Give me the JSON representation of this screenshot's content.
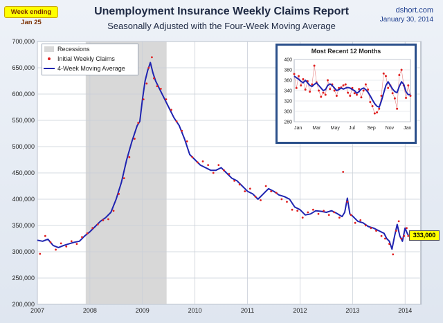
{
  "header": {
    "week_badge": "Week ending Jan 25",
    "title": "Unemployment Insurance Weekly Claims Report",
    "subtitle": "Seasonally Adjusted with the Four-Week Moving Average",
    "source": "dshort.com",
    "date": "January 30, 2014"
  },
  "legend": {
    "recessions": "Recessions",
    "claims": "Initial Weekly Claims",
    "average": "4-Week Moving Average"
  },
  "last_value_label": "333,000",
  "colors": {
    "recession": "#d8d8d8",
    "claims": "#e02020",
    "average": "#1f24b0",
    "highlight": "#ffff00"
  },
  "chart_data": [
    {
      "type": "line",
      "title": "Unemployment Insurance Weekly Claims Report",
      "subtitle": "Seasonally Adjusted with the Four-Week Moving Average",
      "ylim": [
        200000,
        700000
      ],
      "xlim": [
        2007.0,
        2014.3
      ],
      "y_ticks": [
        200000,
        250000,
        300000,
        350000,
        400000,
        450000,
        500000,
        550000,
        600000,
        650000,
        700000
      ],
      "y_tick_labels": [
        "200,000",
        "250,000",
        "300,000",
        "350,000",
        "400,000",
        "450,000",
        "500,000",
        "550,000",
        "600,000",
        "650,000",
        "700,000"
      ],
      "x_ticks": [
        2007,
        2008,
        2009,
        2010,
        2011,
        2012,
        2013,
        2014
      ],
      "x_tick_labels": [
        "2007",
        "2008",
        "2009",
        "2010",
        "2011",
        "2012",
        "2013",
        "2014"
      ],
      "grid": true,
      "recession": [
        2007.92,
        2009.46
      ],
      "series": [
        {
          "name": "4-Week Moving Average",
          "style": "line",
          "x": [
            2007.0,
            2007.1,
            2007.2,
            2007.3,
            2007.4,
            2007.5,
            2007.6,
            2007.7,
            2007.8,
            2007.9,
            2008.0,
            2008.1,
            2008.2,
            2008.3,
            2008.4,
            2008.5,
            2008.6,
            2008.7,
            2008.8,
            2008.9,
            2008.95,
            2009.0,
            2009.05,
            2009.1,
            2009.15,
            2009.2,
            2009.25,
            2009.3,
            2009.4,
            2009.5,
            2009.6,
            2009.7,
            2009.8,
            2009.9,
            2010.0,
            2010.1,
            2010.2,
            2010.3,
            2010.4,
            2010.5,
            2010.6,
            2010.7,
            2010.8,
            2010.9,
            2011.0,
            2011.1,
            2011.2,
            2011.3,
            2011.4,
            2011.5,
            2011.6,
            2011.7,
            2011.8,
            2011.9,
            2012.0,
            2012.1,
            2012.2,
            2012.3,
            2012.4,
            2012.5,
            2012.6,
            2012.7,
            2012.8,
            2012.85,
            2012.9,
            2012.95,
            2013.0,
            2013.1,
            2013.2,
            2013.3,
            2013.4,
            2013.5,
            2013.6,
            2013.65,
            2013.7,
            2013.75,
            2013.8,
            2013.85,
            2013.9,
            2013.95,
            2014.0,
            2014.05,
            2014.07
          ],
          "values": [
            322000,
            320000,
            324000,
            312000,
            308000,
            312000,
            315000,
            318000,
            320000,
            330000,
            338000,
            348000,
            358000,
            365000,
            375000,
            400000,
            432000,
            475000,
            510000,
            540000,
            548000,
            590000,
            625000,
            645000,
            660000,
            640000,
            625000,
            615000,
            595000,
            575000,
            555000,
            540000,
            515000,
            485000,
            475000,
            465000,
            460000,
            455000,
            455000,
            460000,
            450000,
            440000,
            435000,
            425000,
            415000,
            410000,
            400000,
            410000,
            420000,
            415000,
            408000,
            405000,
            400000,
            385000,
            380000,
            370000,
            372000,
            378000,
            377000,
            375000,
            378000,
            373000,
            367000,
            375000,
            402000,
            372000,
            368000,
            358000,
            355000,
            348000,
            345000,
            340000,
            335000,
            325000,
            320000,
            305000,
            330000,
            352000,
            330000,
            320000,
            345000,
            333000,
            333000
          ]
        },
        {
          "name": "Initial Weekly Claims",
          "style": "dots",
          "x": [
            2007.05,
            2007.15,
            2007.25,
            2007.35,
            2007.45,
            2007.55,
            2007.65,
            2007.75,
            2007.85,
            2007.95,
            2008.05,
            2008.15,
            2008.25,
            2008.35,
            2008.45,
            2008.55,
            2008.65,
            2008.75,
            2008.85,
            2008.92,
            2009.02,
            2009.08,
            2009.12,
            2009.18,
            2009.22,
            2009.28,
            2009.35,
            2009.45,
            2009.55,
            2009.65,
            2009.75,
            2009.85,
            2009.95,
            2010.05,
            2010.15,
            2010.25,
            2010.35,
            2010.45,
            2010.55,
            2010.65,
            2010.75,
            2010.85,
            2010.95,
            2011.05,
            2011.15,
            2011.25,
            2011.35,
            2011.45,
            2011.55,
            2011.65,
            2011.75,
            2011.85,
            2011.95,
            2012.05,
            2012.15,
            2012.25,
            2012.35,
            2012.45,
            2012.55,
            2012.65,
            2012.75,
            2012.82,
            2012.9,
            2012.97,
            2013.05,
            2013.15,
            2013.25,
            2013.35,
            2013.45,
            2013.55,
            2013.62,
            2013.7,
            2013.77,
            2013.83,
            2013.88,
            2013.93,
            2013.98,
            2014.03,
            2014.06
          ],
          "values": [
            296000,
            330000,
            318000,
            304000,
            316000,
            310000,
            320000,
            315000,
            328000,
            335000,
            345000,
            352000,
            360000,
            362000,
            378000,
            410000,
            440000,
            480000,
            515000,
            545000,
            590000,
            620000,
            650000,
            670000,
            630000,
            615000,
            610000,
            590000,
            570000,
            548000,
            530000,
            510000,
            480000,
            470000,
            472000,
            465000,
            450000,
            465000,
            455000,
            448000,
            435000,
            428000,
            415000,
            420000,
            405000,
            398000,
            425000,
            415000,
            412000,
            400000,
            395000,
            380000,
            378000,
            365000,
            375000,
            380000,
            372000,
            378000,
            370000,
            375000,
            365000,
            452000,
            395000,
            370000,
            355000,
            360000,
            350000,
            345000,
            340000,
            330000,
            325000,
            315000,
            295000,
            340000,
            358000,
            325000,
            330000,
            345000,
            330000
          ]
        }
      ],
      "last_value_label": "333,000"
    },
    {
      "type": "line",
      "title": "Most Recent 12 Months",
      "ylim": [
        280,
        400
      ],
      "y_ticks": [
        280,
        300,
        320,
        340,
        360,
        380,
        400
      ],
      "x_tick_labels": [
        "Jan",
        "Mar",
        "May",
        "Jul",
        "Sep",
        "Nov",
        "Jan"
      ],
      "grid": true,
      "series": [
        {
          "name": "4-Week Moving Average",
          "style": "line",
          "x": [
            0,
            1,
            2,
            3,
            4,
            5,
            6,
            7,
            8,
            9,
            10,
            11,
            12,
            13,
            14,
            15,
            16,
            17,
            18,
            19,
            20,
            21,
            22,
            23,
            24,
            25,
            26,
            27,
            28,
            29,
            30,
            31,
            32,
            33,
            34,
            35,
            36,
            37,
            38,
            39,
            40,
            41,
            42,
            43,
            44,
            45,
            46,
            47,
            48,
            49,
            50,
            51,
            52
          ],
          "values": [
            368,
            365,
            362,
            358,
            355,
            360,
            355,
            350,
            348,
            352,
            355,
            350,
            345,
            340,
            342,
            350,
            353,
            350,
            345,
            340,
            342,
            345,
            343,
            345,
            346,
            345,
            342,
            340,
            335,
            338,
            343,
            345,
            342,
            337,
            330,
            322,
            315,
            310,
            308,
            320,
            335,
            350,
            357,
            350,
            343,
            338,
            336,
            348,
            357,
            352,
            338,
            332,
            333
          ]
        },
        {
          "name": "Initial Weekly Claims",
          "style": "dots",
          "x": [
            0,
            1,
            2,
            3,
            4,
            5,
            6,
            7,
            8,
            9,
            10,
            11,
            12,
            13,
            14,
            15,
            16,
            17,
            18,
            19,
            20,
            21,
            22,
            23,
            24,
            25,
            26,
            27,
            28,
            29,
            30,
            31,
            32,
            33,
            34,
            35,
            36,
            37,
            38,
            39,
            40,
            41,
            42,
            43,
            44,
            45,
            46,
            47,
            48,
            49,
            50,
            51,
            52
          ],
          "values": [
            372,
            345,
            368,
            350,
            362,
            342,
            358,
            338,
            352,
            388,
            356,
            340,
            328,
            336,
            332,
            360,
            343,
            352,
            340,
            330,
            345,
            346,
            350,
            352,
            336,
            330,
            345,
            335,
            332,
            343,
            327,
            340,
            352,
            342,
            318,
            310,
            296,
            298,
            305,
            330,
            373,
            368,
            345,
            350,
            335,
            325,
            305,
            370,
            380,
            350,
            326,
            350,
            330
          ]
        }
      ]
    }
  ]
}
